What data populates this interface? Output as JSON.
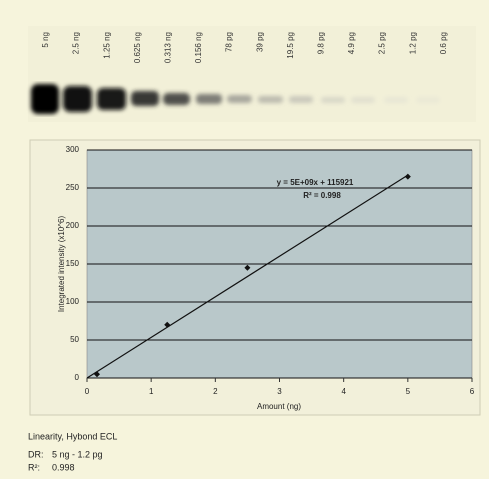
{
  "blot": {
    "lanes": [
      "5 ng",
      "2.5 ng",
      "1.25 ng",
      "0.625 ng",
      "0.313 ng",
      "0.156 ng",
      "78 pg",
      "39 pg",
      "19.5 pg",
      "9.8 pg",
      "4.9 pg",
      "2.5 pg",
      "1.2 pg",
      "0.6 pg"
    ]
  },
  "chart_data": {
    "type": "scatter",
    "x_label": "Amount (ng)",
    "y_label": "Integrated intensity (x10^6)",
    "x": [
      0.156,
      1.25,
      2.5,
      5
    ],
    "values": [
      5,
      70,
      145,
      265
    ],
    "color": "#111111",
    "trendline": {
      "x": [
        0,
        5
      ],
      "y": [
        0,
        267
      ]
    },
    "annotations": [
      "y = 5E+09x + 115921",
      "R² = 0.998"
    ],
    "xlim": [
      0,
      6
    ],
    "xticks": [
      0,
      1,
      2,
      3,
      4,
      5,
      6
    ],
    "ylim": [
      0,
      300
    ],
    "yticks": [
      0,
      50,
      100,
      150,
      200,
      250,
      300
    ],
    "grid": true
  },
  "caption": {
    "title": "Linearity, Hybond ECL",
    "lines": [
      [
        "DR:",
        "5 ng - 1.2 pg"
      ],
      [
        "R²:",
        "0.998"
      ]
    ]
  }
}
